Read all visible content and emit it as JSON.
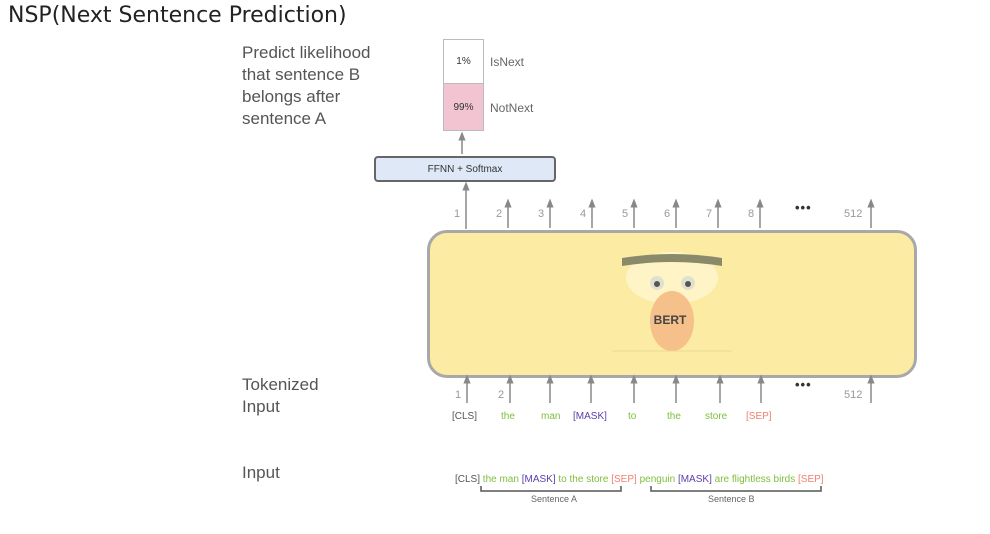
{
  "title": "NSP(Next Sentence Prediction)",
  "labels": {
    "predict": "Predict likelihood\nthat sentence B\nbelongs after\nsentence A",
    "tokenized": "Tokenized\nInput",
    "input": "Input"
  },
  "output": {
    "isnext_pct": "1%",
    "isnext_label": "IsNext",
    "notnext_pct": "99%",
    "notnext_label": "NotNext"
  },
  "ffnn_label": "FFNN + Softmax",
  "model_label": "BERT",
  "output_positions": [
    "1",
    "2",
    "3",
    "4",
    "5",
    "6",
    "7",
    "8",
    "512"
  ],
  "input_positions": [
    "1",
    "2",
    "512"
  ],
  "ellipsis": "•••",
  "tokens": [
    "[CLS]",
    "the",
    "man",
    "[MASK]",
    "to",
    "the",
    "store",
    "[SEP]"
  ],
  "input_sequence": {
    "cls": "[CLS]",
    "sentence_a": "the man",
    "mask_a": "[MASK]",
    "sentence_a_rest": "to the store",
    "sep_a": "[SEP]",
    "sentence_b": "penguin",
    "mask_b": "[MASK]",
    "sentence_b_rest": "are flightless birds",
    "sep_b": "[SEP]"
  },
  "brace_labels": {
    "a": "Sentence A",
    "b": "Sentence B"
  },
  "colors": {
    "token_green": "#7dbf3c",
    "token_purple": "#5a3ea8",
    "token_red": "#f08070",
    "token_gray": "#555555",
    "probability_fill": "#f2c4d2",
    "ffnn_fill": "#dfe8f6",
    "bert_fill": "#fbeba3"
  }
}
